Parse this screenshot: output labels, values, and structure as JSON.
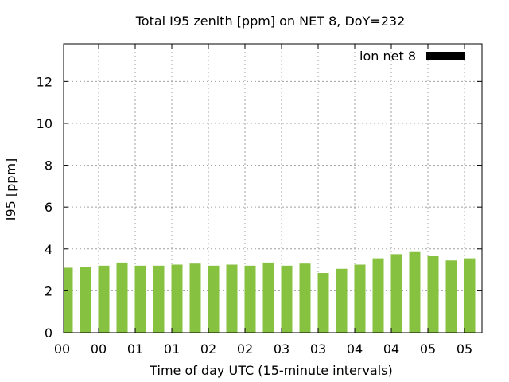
{
  "chart_data": {
    "type": "bar",
    "title": "Total I95 zenith [ppm] on NET 8, DoY=232",
    "xlabel": "Time of day UTC (15-minute intervals)",
    "ylabel": "I95 [ppm]",
    "ylim": [
      0,
      13.8
    ],
    "y_ticks": [
      0,
      2,
      4,
      6,
      8,
      10,
      12
    ],
    "x_tick_labels": [
      "00",
      "00",
      "01",
      "01",
      "02",
      "02",
      "03",
      "03",
      "04",
      "04",
      "05",
      "05"
    ],
    "grid": true,
    "legend_position": "top-right",
    "series": [
      {
        "name": "ion net 8",
        "color": "#86c140",
        "values": [
          3.1,
          3.15,
          3.2,
          3.35,
          3.2,
          3.2,
          3.25,
          3.3,
          3.2,
          3.25,
          3.2,
          3.35,
          3.2,
          3.3,
          2.85,
          3.05,
          3.25,
          3.55,
          3.75,
          3.85,
          3.65,
          3.45,
          3.55,
          3.6
        ]
      }
    ],
    "legend_swatch_color": "#000000"
  }
}
